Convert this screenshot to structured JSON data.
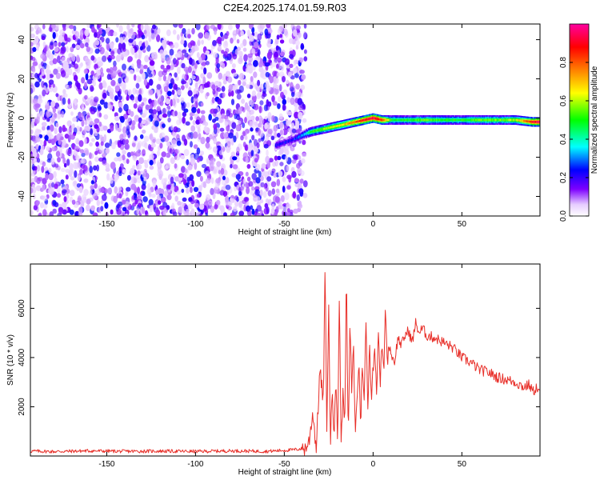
{
  "title": "C2E4.2025.174.01.59.R03",
  "chart_data": [
    {
      "type": "heatmap",
      "xlabel": "Height of straight line (km)",
      "ylabel": "Frequency (Hz)",
      "xlim": [
        -193,
        94
      ],
      "ylim": [
        -50,
        48
      ],
      "xticks": [
        -150,
        -100,
        -50,
        0,
        50
      ],
      "yticks": [
        -40,
        -20,
        0,
        20,
        40
      ],
      "colorbar": {
        "label": "Normalized spectral amplitude",
        "range": [
          0,
          1
        ],
        "ticks": [
          0.0,
          0.2,
          0.4,
          0.6,
          0.8
        ],
        "tick_labels": [
          "0.0",
          "0.2",
          "0.4",
          "0.6",
          "0.8"
        ],
        "colormap": [
          "#ffffff",
          "#7d00ff",
          "#0000ff",
          "#00ffff",
          "#00ff00",
          "#ffff00",
          "#ff8000",
          "#ff0000",
          "#ff00a0"
        ]
      },
      "noise_region": {
        "x": [
          -193,
          -38
        ],
        "y": [
          -50,
          48
        ],
        "amplitude": [
          0.05,
          0.25
        ]
      },
      "signal_track": {
        "x": [
          -55,
          -45,
          -38,
          -35,
          -30,
          -25,
          -20,
          -15,
          -10,
          -5,
          0,
          5,
          10,
          20,
          30,
          40,
          50,
          60,
          70,
          80,
          90,
          94
        ],
        "y": [
          -14,
          -11,
          -8,
          -7,
          -6,
          -5,
          -4,
          -3,
          -2,
          -1,
          0,
          -1,
          -1,
          -1,
          -1,
          -1,
          -1,
          -1,
          -1,
          -1,
          -2,
          -2
        ],
        "amplitude": [
          0.2,
          0.25,
          0.35,
          0.5,
          0.55,
          0.6,
          0.65,
          0.7,
          0.8,
          0.9,
          0.95,
          0.85,
          0.5,
          0.5,
          0.55,
          0.5,
          0.5,
          0.55,
          0.55,
          0.6,
          0.9,
          0.95
        ]
      }
    },
    {
      "type": "line",
      "xlabel": "Height of straight line (km)",
      "ylabel": "SNR (10 * v/v)",
      "xlim": [
        -193,
        94
      ],
      "ylim": [
        0,
        7800
      ],
      "xticks": [
        -150,
        -100,
        -50,
        0,
        50
      ],
      "yticks": [
        2000,
        4000,
        6000
      ],
      "color": "#e8302a",
      "series": [
        {
          "x": [
            -193,
            -180,
            -160,
            -140,
            -120,
            -100,
            -80,
            -60,
            -45,
            -40,
            -38,
            -36,
            -34,
            -32,
            -30,
            -28,
            -27,
            -26,
            -25,
            -24,
            -23,
            -22,
            -21,
            -20,
            -19,
            -18,
            -17,
            -16,
            -15,
            -14,
            -13,
            -12,
            -11,
            -10,
            -9,
            -8,
            -7,
            -6,
            -5,
            -4,
            -3,
            -2,
            -1,
            0,
            1,
            2,
            3,
            4,
            5,
            6,
            7,
            8,
            9,
            10,
            12,
            14,
            16,
            18,
            20,
            22,
            24,
            26,
            28,
            30,
            35,
            40,
            45,
            50,
            55,
            60,
            65,
            70,
            75,
            80,
            85,
            88,
            90,
            92,
            94
          ],
          "y": [
            200,
            180,
            210,
            190,
            200,
            185,
            210,
            190,
            250,
            300,
            320,
            600,
            1800,
            300,
            3500,
            2200,
            7700,
            800,
            6200,
            400,
            2800,
            1000,
            3300,
            200,
            6800,
            400,
            2500,
            1500,
            7400,
            300,
            5400,
            2600,
            4500,
            800,
            2500,
            3800,
            1300,
            4000,
            2000,
            5600,
            1800,
            4800,
            2300,
            3500,
            4400,
            2600,
            5200,
            2900,
            4600,
            3300,
            6200,
            3700,
            4600,
            4200,
            3800,
            4800,
            4500,
            4900,
            5100,
            4600,
            5400,
            5000,
            5200,
            4900,
            4800,
            4600,
            4400,
            4000,
            3800,
            3500,
            3400,
            3200,
            3100,
            3000,
            2800,
            2900,
            2600,
            2800,
            2500
          ]
        }
      ]
    }
  ]
}
